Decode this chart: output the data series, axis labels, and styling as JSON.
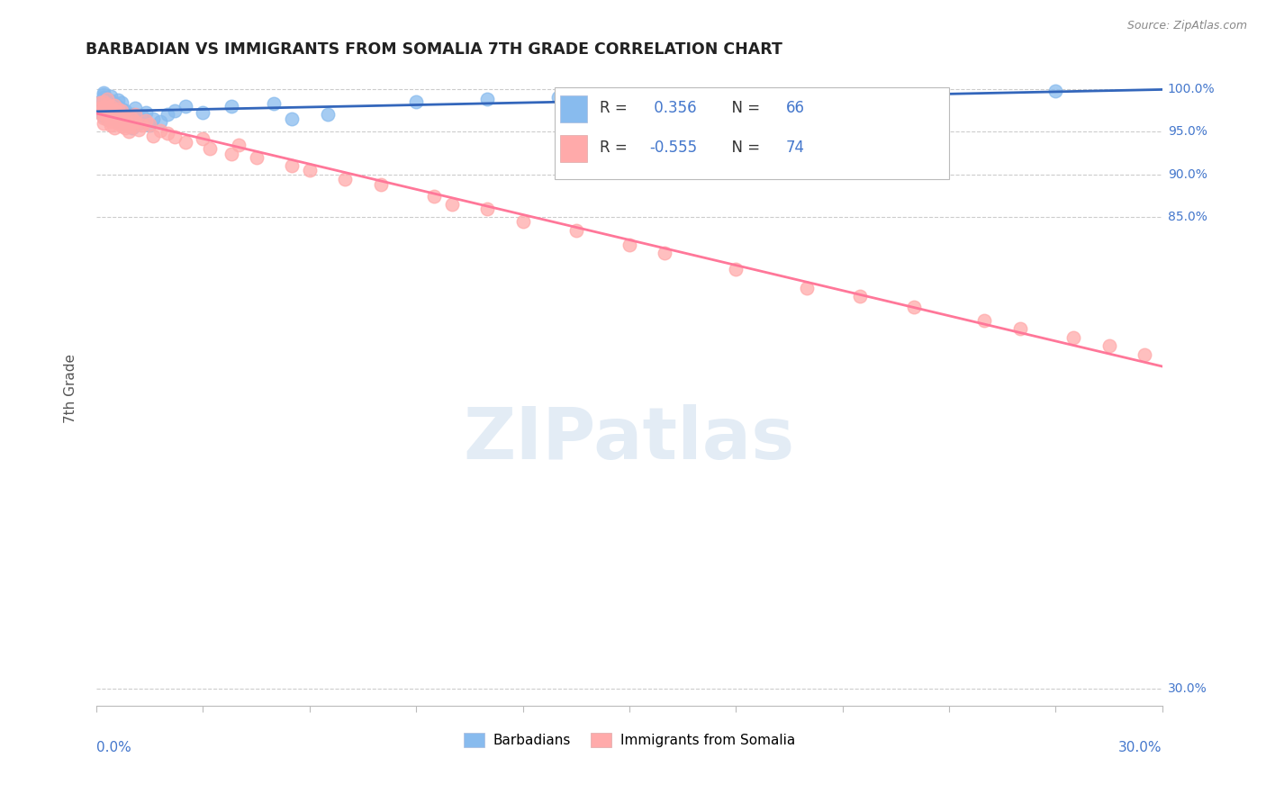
{
  "title": "BARBADIAN VS IMMIGRANTS FROM SOMALIA 7TH GRADE CORRELATION CHART",
  "source": "Source: ZipAtlas.com",
  "ylabel": "7th Grade",
  "blue_R": 0.356,
  "blue_N": 66,
  "pink_R": -0.555,
  "pink_N": 74,
  "blue_color": "#88BBEE",
  "pink_color": "#FFAAAA",
  "blue_line_color": "#3366BB",
  "pink_line_color": "#FF7799",
  "legend_blue_label": "Barbadians",
  "legend_pink_label": "Immigrants from Somalia",
  "watermark_text": "ZIPatlas",
  "xmin": 0.0,
  "xmax": 0.3,
  "ymin": 0.28,
  "ymax": 1.02,
  "yticks": [
    0.3,
    0.85,
    0.9,
    0.95,
    1.0
  ],
  "ytick_labels": [
    "30.0%",
    "85.0%",
    "90.0%",
    "95.0%",
    "100.0%"
  ],
  "blue_scatter_x": [
    0.001,
    0.001,
    0.001,
    0.001,
    0.002,
    0.002,
    0.002,
    0.002,
    0.002,
    0.002,
    0.002,
    0.003,
    0.003,
    0.003,
    0.003,
    0.003,
    0.003,
    0.003,
    0.004,
    0.004,
    0.004,
    0.004,
    0.004,
    0.004,
    0.005,
    0.005,
    0.005,
    0.005,
    0.005,
    0.006,
    0.006,
    0.006,
    0.006,
    0.006,
    0.007,
    0.007,
    0.007,
    0.007,
    0.008,
    0.008,
    0.008,
    0.009,
    0.009,
    0.01,
    0.01,
    0.011,
    0.011,
    0.012,
    0.013,
    0.014,
    0.015,
    0.016,
    0.018,
    0.02,
    0.022,
    0.025,
    0.03,
    0.038,
    0.05,
    0.055,
    0.065,
    0.09,
    0.11,
    0.13,
    0.2,
    0.27
  ],
  "blue_scatter_y": [
    0.975,
    0.98,
    0.985,
    0.972,
    0.968,
    0.975,
    0.98,
    0.985,
    0.99,
    0.993,
    0.996,
    0.965,
    0.97,
    0.975,
    0.98,
    0.985,
    0.988,
    0.972,
    0.966,
    0.972,
    0.978,
    0.982,
    0.986,
    0.991,
    0.967,
    0.973,
    0.979,
    0.983,
    0.977,
    0.963,
    0.969,
    0.974,
    0.98,
    0.987,
    0.964,
    0.971,
    0.977,
    0.984,
    0.96,
    0.967,
    0.974,
    0.958,
    0.966,
    0.954,
    0.97,
    0.962,
    0.978,
    0.96,
    0.968,
    0.972,
    0.958,
    0.965,
    0.962,
    0.97,
    0.975,
    0.98,
    0.972,
    0.98,
    0.983,
    0.965,
    0.97,
    0.985,
    0.988,
    0.99,
    0.993,
    0.998
  ],
  "pink_scatter_x": [
    0.001,
    0.001,
    0.001,
    0.002,
    0.002,
    0.002,
    0.002,
    0.002,
    0.003,
    0.003,
    0.003,
    0.003,
    0.003,
    0.004,
    0.004,
    0.004,
    0.004,
    0.004,
    0.005,
    0.005,
    0.005,
    0.005,
    0.005,
    0.006,
    0.006,
    0.006,
    0.006,
    0.007,
    0.007,
    0.007,
    0.007,
    0.008,
    0.008,
    0.008,
    0.009,
    0.009,
    0.01,
    0.01,
    0.011,
    0.011,
    0.012,
    0.013,
    0.014,
    0.015,
    0.016,
    0.018,
    0.02,
    0.022,
    0.025,
    0.03,
    0.032,
    0.038,
    0.04,
    0.045,
    0.055,
    0.06,
    0.07,
    0.08,
    0.095,
    0.1,
    0.11,
    0.12,
    0.135,
    0.15,
    0.16,
    0.18,
    0.2,
    0.215,
    0.23,
    0.25,
    0.26,
    0.275,
    0.285,
    0.295
  ],
  "pink_scatter_y": [
    0.972,
    0.978,
    0.984,
    0.966,
    0.973,
    0.979,
    0.985,
    0.96,
    0.965,
    0.97,
    0.976,
    0.982,
    0.988,
    0.962,
    0.968,
    0.974,
    0.98,
    0.958,
    0.963,
    0.969,
    0.975,
    0.981,
    0.955,
    0.96,
    0.966,
    0.972,
    0.977,
    0.957,
    0.963,
    0.969,
    0.975,
    0.954,
    0.96,
    0.966,
    0.95,
    0.957,
    0.965,
    0.956,
    0.962,
    0.97,
    0.952,
    0.958,
    0.963,
    0.959,
    0.945,
    0.951,
    0.948,
    0.944,
    0.938,
    0.942,
    0.93,
    0.924,
    0.935,
    0.92,
    0.91,
    0.905,
    0.895,
    0.888,
    0.875,
    0.865,
    0.86,
    0.845,
    0.835,
    0.818,
    0.808,
    0.79,
    0.768,
    0.758,
    0.745,
    0.73,
    0.72,
    0.71,
    0.7,
    0.69
  ]
}
